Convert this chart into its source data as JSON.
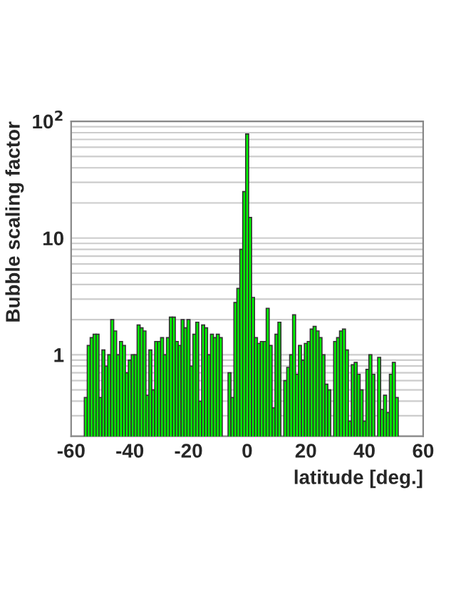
{
  "chart_data": {
    "type": "histogram",
    "xlabel": "latitude [deg.]",
    "ylabel": "Bubble scaling factor",
    "bins": [
      -55.5,
      -54.5,
      -53.5,
      -52.5,
      -51.5,
      -50.5,
      -49.5,
      -48.5,
      -47.5,
      -46.5,
      -45.5,
      -44.5,
      -43.5,
      -42.5,
      -41.5,
      -40.5,
      -39.5,
      -38.5,
      -37.5,
      -36.5,
      -35.5,
      -34.5,
      -33.5,
      -32.5,
      -31.5,
      -30.5,
      -29.5,
      -28.5,
      -27.5,
      -26.5,
      -25.5,
      -24.5,
      -23.5,
      -22.5,
      -21.5,
      -20.5,
      -19.5,
      -18.5,
      -17.5,
      -16.5,
      -15.5,
      -14.5,
      -13.5,
      -12.5,
      -11.5,
      -10.5,
      -9.5,
      -8.5,
      -7.5,
      -6.5,
      -5.5,
      -4.5,
      -3.5,
      -2.5,
      -1.5,
      -0.5,
      0.5,
      1.5,
      2.5,
      3.5,
      4.5,
      5.5,
      6.5,
      7.5,
      8.5,
      9.5,
      10.5,
      11.5,
      12.5,
      13.5,
      14.5,
      15.5,
      16.5,
      17.5,
      18.5,
      19.5,
      20.5,
      21.5,
      22.5,
      23.5,
      24.5,
      25.5,
      26.5,
      27.5,
      28.5,
      29.5,
      30.5,
      31.5,
      32.5,
      33.5,
      34.5,
      35.5,
      36.5,
      37.5,
      38.5,
      39.5,
      40.5,
      41.5,
      42.5,
      43.5,
      44.5,
      45.5,
      46.5,
      47.5,
      48.5,
      49.5,
      50.5,
      51.5
    ],
    "values": [
      0.43,
      1.2,
      1.4,
      1.5,
      1.5,
      0.43,
      1.1,
      0.8,
      1.0,
      2.0,
      1.6,
      1.0,
      1.3,
      1.2,
      0.7,
      0.9,
      1.0,
      1.0,
      1.8,
      1.7,
      1.6,
      0.45,
      1.1,
      0.5,
      1.3,
      1.3,
      1.4,
      1.0,
      1.4,
      2.1,
      2.1,
      1.3,
      1.2,
      2.0,
      1.7,
      2.0,
      0.8,
      1.5,
      1.9,
      0.4,
      1.8,
      1.7,
      1.0,
      1.5,
      1.4,
      1.5,
      1.4,
      null,
      null,
      0.7,
      0.43,
      2.8,
      3.7,
      8,
      25,
      78,
      15,
      3.1,
      1.4,
      1.25,
      1.3,
      1.3,
      2.5,
      1.2,
      0.35,
      1.5,
      1.9,
      null,
      0.6,
      0.78,
      1.0,
      2.2,
      0.68,
      1.2,
      0.9,
      1.25,
      1.3,
      1.66,
      1.75,
      1.6,
      1.4,
      1.0,
      0.56,
      0.5,
      null,
      1.3,
      1.4,
      1.6,
      1.66,
      1.1,
      0.27,
      0.82,
      0.86,
      0.68,
      0.5,
      0.27,
      0.75,
      1.0,
      0.68,
      null,
      0.95,
      0.34,
      0.45,
      0.32,
      0.68,
      0.86,
      0.43
    ],
    "color": "#00ff00",
    "log": "y",
    "xlim": [
      -60,
      60
    ],
    "xticks": [
      -60,
      -40,
      -20,
      0,
      20,
      40,
      60
    ],
    "ylim": [
      0.2,
      100
    ],
    "yticks": [
      {
        "value": 100,
        "label": "10$^{2}$"
      },
      10,
      1
    ],
    "grid": "y"
  }
}
